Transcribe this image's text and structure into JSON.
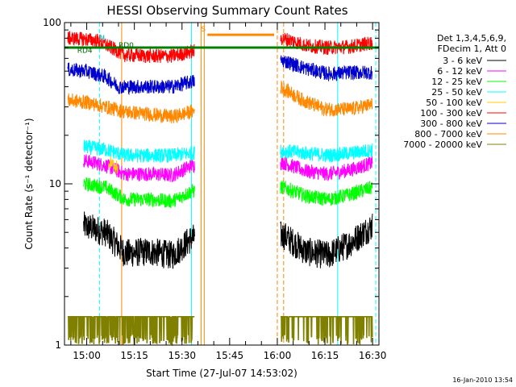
{
  "chart_data": {
    "type": "line",
    "title": "HESSI Observing Summary Count Rates",
    "xlabel": "Start Time (27-Jul-07 14:53:02)",
    "ylabel": "Count Rate (s⁻¹ detector⁻¹)",
    "y_scale": "log",
    "ylim": [
      1,
      100
    ],
    "y_ticks": [
      {
        "value": 1,
        "label": "1"
      },
      {
        "value": 10,
        "label": "10"
      },
      {
        "value": 100,
        "label": "100"
      }
    ],
    "xlim": [
      "14:53",
      "16:32"
    ],
    "x_ticks": [
      {
        "value": "15:00",
        "label": "15:00"
      },
      {
        "value": "15:15",
        "label": "15:15"
      },
      {
        "value": "15:30",
        "label": "15:30"
      },
      {
        "value": "15:45",
        "label": "15:45"
      },
      {
        "value": "16:00",
        "label": "16:00"
      },
      {
        "value": "16:15",
        "label": "16:15"
      },
      {
        "value": "16:30",
        "label": "16:30"
      }
    ],
    "footer": "16-Jan-2010 13:54",
    "legend_header": [
      "Det 1,3,4,5,6,9,",
      "FDecim 1, Att 0"
    ],
    "legend_position": "right",
    "series": [
      {
        "name": "3 - 6 keV",
        "color": "#000000",
        "points": [
          [
            "14:59",
            5.5
          ],
          [
            "15:06",
            5.0
          ],
          [
            "15:12",
            3.7
          ],
          [
            "15:20",
            3.8
          ],
          [
            "15:27",
            3.6
          ],
          [
            "15:33",
            4.6
          ],
          [
            "16:02",
            4.8
          ],
          [
            "16:09",
            3.8
          ],
          [
            "16:16",
            3.6
          ],
          [
            "16:23",
            4.3
          ],
          [
            "16:30",
            5.5
          ]
        ]
      },
      {
        "name": "6 - 12 keV",
        "color": "#ff00ff",
        "points": [
          [
            "14:59",
            14
          ],
          [
            "15:06",
            13
          ],
          [
            "15:12",
            11.5
          ],
          [
            "15:20",
            11.5
          ],
          [
            "15:27",
            11.3
          ],
          [
            "15:33",
            13
          ],
          [
            "16:02",
            13.5
          ],
          [
            "16:09",
            12
          ],
          [
            "16:16",
            11.5
          ],
          [
            "16:23",
            12.2
          ],
          [
            "16:30",
            13.5
          ]
        ]
      },
      {
        "name": "12 - 25 keV",
        "color": "#00ff00",
        "points": [
          [
            "14:59",
            10
          ],
          [
            "15:06",
            9.5
          ],
          [
            "15:12",
            8
          ],
          [
            "15:20",
            8
          ],
          [
            "15:27",
            7.8
          ],
          [
            "15:33",
            9
          ],
          [
            "16:02",
            9.5
          ],
          [
            "16:09",
            8.4
          ],
          [
            "16:16",
            8
          ],
          [
            "16:23",
            8.6
          ],
          [
            "16:30",
            9.5
          ]
        ]
      },
      {
        "name": "25 - 50 keV",
        "color": "#00ffff",
        "points": [
          [
            "14:59",
            17
          ],
          [
            "15:06",
            16.3
          ],
          [
            "15:12",
            15
          ],
          [
            "15:20",
            15
          ],
          [
            "15:27",
            15
          ],
          [
            "15:33",
            15.5
          ],
          [
            "16:02",
            16
          ],
          [
            "16:09",
            15.5
          ],
          [
            "16:16",
            15
          ],
          [
            "16:23",
            15.5
          ],
          [
            "16:30",
            16.2
          ]
        ]
      },
      {
        "name": "50 - 100 keV",
        "color": "#ffcc00",
        "points": [
          [
            "15:07",
            13.5
          ],
          [
            "15:10",
            12.5
          ]
        ]
      },
      {
        "name": "100 - 300 keV",
        "color": "#ff0000",
        "points": [
          [
            "14:54",
            80
          ],
          [
            "14:59",
            79
          ],
          [
            "15:04",
            77
          ],
          [
            "15:07",
            71
          ],
          [
            "15:12",
            63
          ],
          [
            "15:20",
            62
          ],
          [
            "15:27",
            62
          ],
          [
            "15:33",
            66
          ],
          [
            "16:01",
            80
          ],
          [
            "16:05",
            77
          ],
          [
            "16:09",
            72
          ],
          [
            "16:16",
            70
          ],
          [
            "16:23",
            71
          ],
          [
            "16:30",
            75
          ]
        ]
      },
      {
        "name": "300 - 800 keV",
        "color": "#0000cc",
        "points": [
          [
            "14:54",
            51
          ],
          [
            "15:00",
            50
          ],
          [
            "15:06",
            46
          ],
          [
            "15:10",
            40
          ],
          [
            "15:15",
            40
          ],
          [
            "15:20",
            40
          ],
          [
            "15:27",
            40
          ],
          [
            "15:33",
            43
          ],
          [
            "16:02",
            58
          ],
          [
            "16:09",
            52
          ],
          [
            "16:16",
            48
          ],
          [
            "16:23",
            49
          ],
          [
            "16:30",
            49
          ]
        ]
      },
      {
        "name": "800 - 7000 keV",
        "color": "#ff8800",
        "points": [
          [
            "14:54",
            33
          ],
          [
            "15:00",
            32
          ],
          [
            "15:06",
            30
          ],
          [
            "15:12",
            28
          ],
          [
            "15:20",
            27
          ],
          [
            "15:27",
            26
          ],
          [
            "15:33",
            28
          ],
          [
            "16:01",
            40
          ],
          [
            "16:08",
            33
          ],
          [
            "16:15",
            29
          ],
          [
            "16:23",
            29
          ],
          [
            "16:30",
            31
          ]
        ]
      },
      {
        "name": "7000 - 20000 keV",
        "color": "#808000",
        "points": [
          [
            "14:54",
            1.5
          ],
          [
            "15:33",
            1.5
          ],
          [
            "16:02",
            1.5
          ],
          [
            "16:30",
            1.5
          ]
        ]
      }
    ],
    "vertical_markers": [
      {
        "time": "14:53",
        "color": "#00ffff",
        "style": "solid"
      },
      {
        "time": "15:04",
        "color": "#00ffff",
        "style": "dashed"
      },
      {
        "time": "15:11",
        "color": "#ff8800",
        "style": "solid"
      },
      {
        "time": "15:33",
        "color": "#00ffff",
        "style": "solid"
      },
      {
        "time": "15:36",
        "color": "#ff8800",
        "style": "solid"
      },
      {
        "time": "15:37",
        "color": "#ff8800",
        "style": "solid"
      },
      {
        "time": "16:00",
        "color": "#ff8800",
        "style": "dashed"
      },
      {
        "time": "16:02",
        "color": "#ff8800",
        "style": "dashed"
      },
      {
        "time": "16:19",
        "color": "#00ffff",
        "style": "solid"
      },
      {
        "time": "16:31",
        "color": "#00ffff",
        "style": "dashed"
      }
    ],
    "annotations": [
      {
        "text": "RD4",
        "time": "14:57",
        "value": 65,
        "color": "#006400"
      },
      {
        "text": "RD0",
        "time": "15:10",
        "value": 70,
        "color": "#006400"
      },
      {
        "text": "N",
        "time": "15:04",
        "value": 78,
        "color": "#00ffff"
      },
      {
        "text": "S",
        "time": "15:36",
        "value": 88,
        "color": "#ff8800"
      }
    ],
    "saa_flag": {
      "color": "#ff8800",
      "value": 84,
      "start": "15:38",
      "end": "15:59"
    },
    "attenuator_line": {
      "color": "#008000",
      "value": 70,
      "start": "14:53",
      "end": "16:32"
    }
  }
}
